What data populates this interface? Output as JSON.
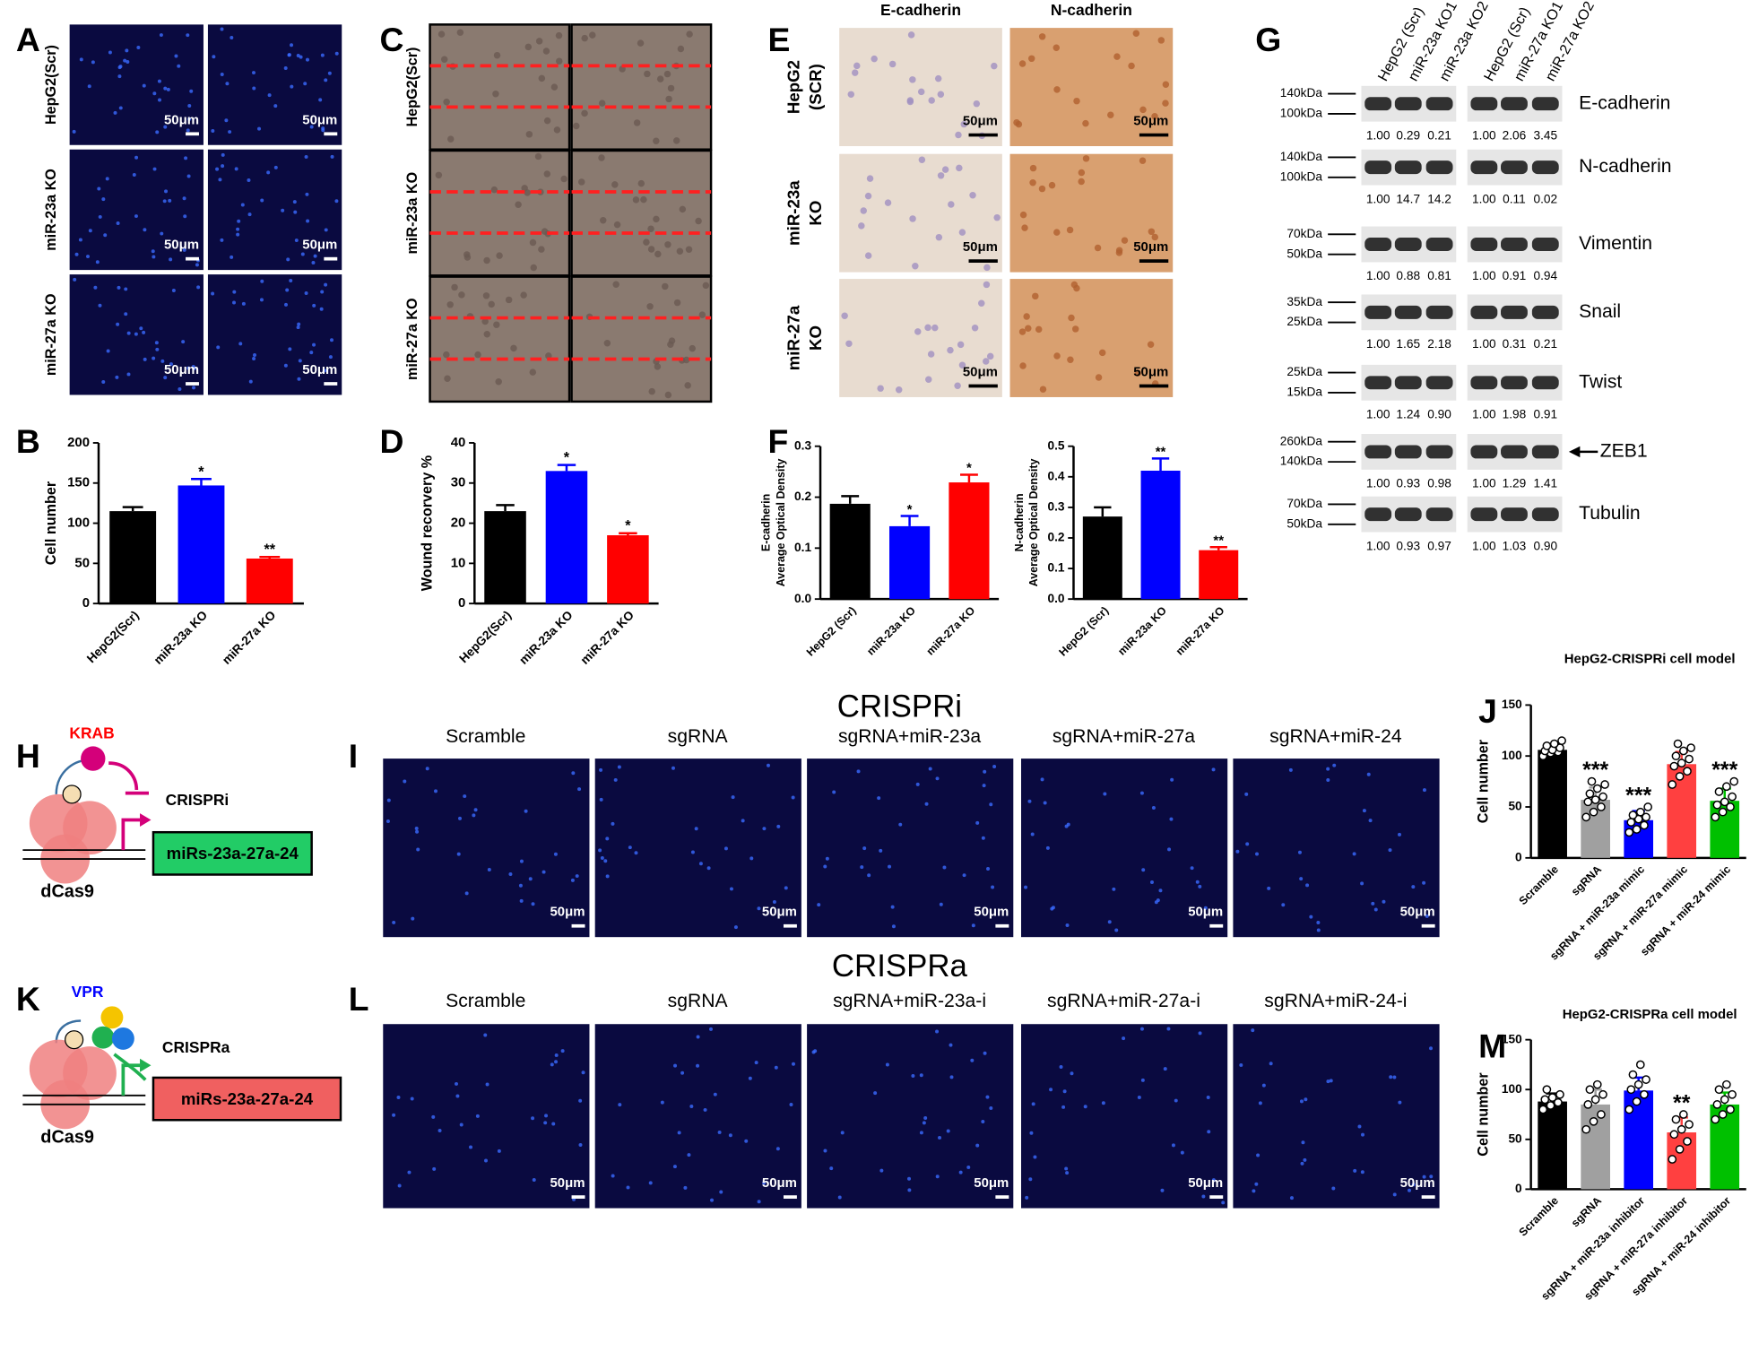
{
  "panel_labels": [
    "A",
    "B",
    "C",
    "D",
    "E",
    "F",
    "G",
    "H",
    "I",
    "J",
    "K",
    "L",
    "M"
  ],
  "scale_bar": "50μm",
  "panel_A": {
    "row_labels": [
      "HepG2(Scr)",
      "miR-23a KO",
      "miR-27a KO"
    ]
  },
  "panel_C": {
    "row_labels": [
      "HepG2(Scr)",
      "miR-23a KO",
      "miR-27a KO"
    ]
  },
  "panel_E": {
    "column_labels": [
      "E-cadherin",
      "N-cadherin"
    ],
    "row_labels": [
      [
        "HepG2",
        "(SCR)"
      ],
      [
        "miR-23a",
        "KO"
      ],
      [
        "miR-27a",
        "KO"
      ]
    ]
  },
  "western_blot": {
    "column_labels": [
      "HepG2 (Scr)",
      "miR-23a KO1",
      "miR-23a KO2",
      "HepG2 (Scr)",
      "miR-27a KO1",
      "miR-27a KO2"
    ],
    "rows": [
      {
        "protein": "E-cadherin",
        "markers": [
          "140kDa",
          "100kDa"
        ],
        "quant": [
          "1.00",
          "0.29",
          "0.21",
          "1.00",
          "2.06",
          "3.45"
        ]
      },
      {
        "protein": "N-cadherin",
        "markers": [
          "140kDa",
          "100kDa"
        ],
        "quant": [
          "1.00",
          "14.7",
          "14.2",
          "1.00",
          "0.11",
          "0.02"
        ]
      },
      {
        "protein": "Vimentin",
        "markers": [
          "70kDa",
          "50kDa"
        ],
        "quant": [
          "1.00",
          "0.88",
          "0.81",
          "1.00",
          "0.91",
          "0.94"
        ]
      },
      {
        "protein": "Snail",
        "markers": [
          "35kDa",
          "25kDa"
        ],
        "quant": [
          "1.00",
          "1.65",
          "2.18",
          "1.00",
          "0.31",
          "0.21"
        ]
      },
      {
        "protein": "Twist",
        "markers": [
          "25kDa",
          "15kDa"
        ],
        "quant": [
          "1.00",
          "1.24",
          "0.90",
          "1.00",
          "1.98",
          "0.91"
        ]
      },
      {
        "protein": "ZEB1",
        "markers": [
          "260kDa",
          "140kDa"
        ],
        "quant": [
          "1.00",
          "0.93",
          "0.98",
          "1.00",
          "1.29",
          "1.41"
        ]
      },
      {
        "protein": "Tubulin",
        "markers": [
          "70kDa",
          "50kDa"
        ],
        "quant": [
          "1.00",
          "0.93",
          "0.97",
          "1.00",
          "1.03",
          "0.90"
        ]
      }
    ]
  },
  "panel_H": {
    "effector": "KRAB",
    "mode": "CRISPRi",
    "target": "miRs-23a-27a-24",
    "protein": "dCas9"
  },
  "panel_K": {
    "effector": "VPR",
    "mode": "CRISPRa",
    "target": "miRs-23a-27a-24",
    "protein": "dCas9"
  },
  "panel_I": {
    "title": "CRISPRi",
    "column_labels": [
      "Scramble",
      "sgRNA",
      "sgRNA+miR-23a",
      "sgRNA+miR-27a",
      "sgRNA+miR-24"
    ]
  },
  "panel_L": {
    "title": "CRISPRa",
    "column_labels": [
      "Scramble",
      "sgRNA",
      "sgRNA+miR-23a-i",
      "sgRNA+miR-27a-i",
      "sgRNA+miR-24-i"
    ]
  },
  "chart_data": [
    {
      "type": "bar",
      "ylabel": [
        "Cell number"
      ],
      "categories": [
        "HepG2(Scr)",
        "miR-23a KO",
        "miR-27a KO"
      ],
      "values": [
        115,
        147,
        56
      ],
      "errors": [
        5,
        8,
        2
      ],
      "colors": [
        "#000000",
        "#0000ff",
        "#ff0000"
      ],
      "significance": [
        null,
        "*",
        "**"
      ],
      "ylim": [
        0,
        200
      ],
      "yticks": [
        0,
        50,
        100,
        150,
        200
      ]
    },
    {
      "type": "bar",
      "ylabel": [
        "Wound recorvery %"
      ],
      "categories": [
        "HepG2(Scr)",
        "miR-23a KO",
        "miR-27a KO"
      ],
      "values": [
        23,
        33,
        17
      ],
      "errors": [
        1.5,
        1.5,
        0.5
      ],
      "colors": [
        "#000000",
        "#0000ff",
        "#ff0000"
      ],
      "significance": [
        null,
        "*",
        "*"
      ],
      "ylim": [
        0,
        40
      ],
      "yticks": [
        0,
        10,
        20,
        30,
        40
      ]
    },
    {
      "type": "bar",
      "ylabel": [
        "E-cadherin",
        "Average Optical Density"
      ],
      "categories": [
        "HepG2 (Scr)",
        "miR-23a KO",
        "miR-27a KO"
      ],
      "values": [
        0.187,
        0.143,
        0.229
      ],
      "errors": [
        0.015,
        0.02,
        0.015
      ],
      "colors": [
        "#000000",
        "#0000ff",
        "#ff0000"
      ],
      "significance": [
        null,
        "*",
        "*"
      ],
      "ylim": [
        0,
        0.3
      ],
      "yticks": [
        {
          "value": 0,
          "label": "0.0"
        },
        0.1,
        0.2,
        0.3
      ]
    },
    {
      "type": "bar",
      "ylabel": [
        "N-cadherin",
        "Average Optical Density"
      ],
      "categories": [
        "HepG2 (Scr)",
        "miR-23a KO",
        "miR-27a KO"
      ],
      "values": [
        0.27,
        0.42,
        0.16
      ],
      "errors": [
        0.03,
        0.04,
        0.01
      ],
      "colors": [
        "#000000",
        "#0000ff",
        "#ff0000"
      ],
      "significance": [
        null,
        "**",
        "**"
      ],
      "ylim": [
        0,
        0.5
      ],
      "yticks": [
        {
          "value": 0,
          "label": "0.0"
        },
        0.1,
        0.2,
        0.3,
        0.4,
        0.5
      ]
    },
    {
      "type": "bar",
      "title": "HepG2-CRISPRi cell model",
      "ylabel": [
        "Cell number"
      ],
      "categories": [
        "Scramble",
        "sgRNA",
        "sgRNA + miR-23a mimic",
        "sgRNA + miR-27a mimic",
        "sgRNA + miR-24 mimic"
      ],
      "values": [
        106,
        57,
        37,
        92,
        56
      ],
      "errors": [
        5,
        12,
        9,
        12,
        12
      ],
      "colors": [
        "#000000",
        "#a0a0a0",
        "#0000ff",
        "#ff4040",
        "#00c000"
      ],
      "significance": [
        null,
        "***",
        "***",
        null,
        "***"
      ],
      "ylim": [
        0,
        150
      ],
      "yticks": [
        0,
        50,
        100,
        150
      ],
      "points": [
        [
          100,
          103,
          104,
          105,
          106,
          108,
          110,
          112,
          115
        ],
        [
          40,
          45,
          50,
          55,
          57,
          60,
          63,
          68,
          72,
          75
        ],
        [
          25,
          28,
          32,
          35,
          38,
          40,
          42,
          45,
          50
        ],
        [
          72,
          80,
          85,
          90,
          93,
          97,
          100,
          105,
          108,
          112
        ],
        [
          40,
          45,
          50,
          52,
          55,
          60,
          65,
          70,
          75
        ]
      ]
    },
    {
      "type": "bar",
      "title": "HepG2-CRISPRa cell model",
      "ylabel": [
        "Cell number"
      ],
      "categories": [
        "Scramble",
        "sgRNA",
        "sgRNA + miR-23a inhibitor",
        "sgRNA + miR-27a inhibitor",
        "sgRNA + miR-24 inhibitor"
      ],
      "values": [
        88,
        85,
        99,
        57,
        85
      ],
      "errors": [
        8,
        15,
        13,
        15,
        12
      ],
      "colors": [
        "#000000",
        "#a0a0a0",
        "#0000ff",
        "#ff4040",
        "#00c000"
      ],
      "significance": [
        null,
        null,
        null,
        "**",
        null
      ],
      "ylim": [
        0,
        150
      ],
      "yticks": [
        0,
        50,
        100,
        150
      ],
      "points": [
        [
          80,
          84,
          87,
          90,
          92,
          95,
          100
        ],
        [
          60,
          68,
          75,
          85,
          90,
          95,
          100,
          105
        ],
        [
          80,
          88,
          95,
          100,
          105,
          110,
          115,
          125
        ],
        [
          30,
          40,
          48,
          55,
          60,
          65,
          70,
          75
        ],
        [
          70,
          75,
          80,
          85,
          90,
          95,
          100,
          105
        ]
      ]
    }
  ]
}
